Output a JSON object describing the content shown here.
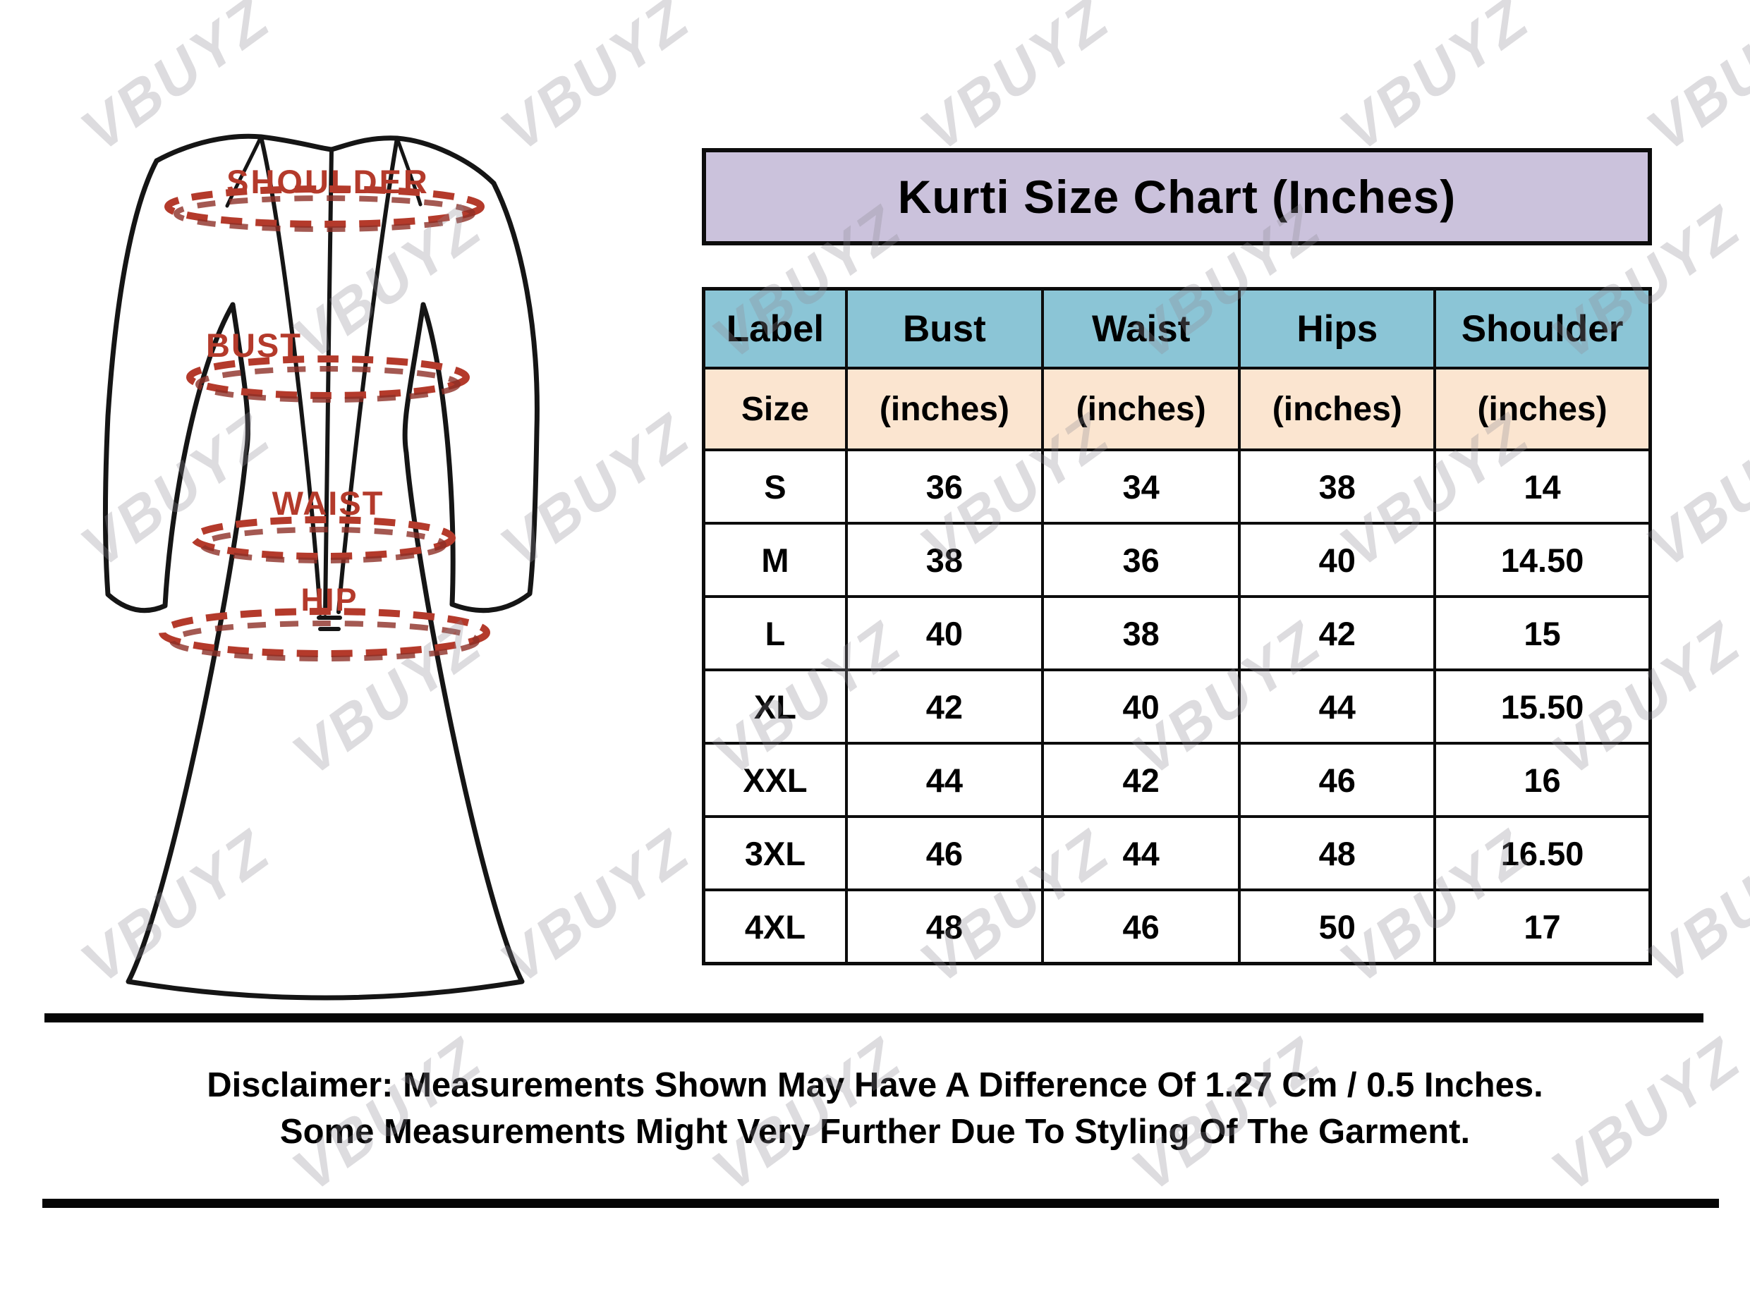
{
  "watermark": {
    "text": "VBUYZ"
  },
  "title": "Kurti Size Chart (Inches)",
  "diagram": {
    "shoulder_label": "SHOULDER",
    "bust_label": "BUST",
    "waist_label": "WAIST",
    "hip_label": "HIP"
  },
  "colors": {
    "title_bg": "#cbc2dc",
    "header_bg": "#8bc5d6",
    "subheader_bg": "#fbe5d0",
    "measure_red": "#b43a2b",
    "line_black": "#0c0c0c"
  },
  "chart_data": {
    "type": "table",
    "title": "Kurti Size Chart (Inches)",
    "columns": [
      "Label",
      "Bust",
      "Waist",
      "Hips",
      "Shoulder"
    ],
    "subheader": [
      "Size",
      "(inches)",
      "(inches)",
      "(inches)",
      "(inches)"
    ],
    "rows": [
      [
        "S",
        "36",
        "34",
        "38",
        "14"
      ],
      [
        "M",
        "38",
        "36",
        "40",
        "14.50"
      ],
      [
        "L",
        "40",
        "38",
        "42",
        "15"
      ],
      [
        "XL",
        "42",
        "40",
        "44",
        "15.50"
      ],
      [
        "XXL",
        "44",
        "42",
        "46",
        "16"
      ],
      [
        "3XL",
        "46",
        "44",
        "48",
        "16.50"
      ],
      [
        "4XL",
        "48",
        "46",
        "50",
        "17"
      ]
    ]
  },
  "disclaimer": {
    "line1": "Disclaimer: Measurements Shown May Have A Difference Of 1.27 Cm / 0.5 Inches.",
    "line2": "Some Measurements Might Very Further Due To Styling Of The Garment."
  }
}
